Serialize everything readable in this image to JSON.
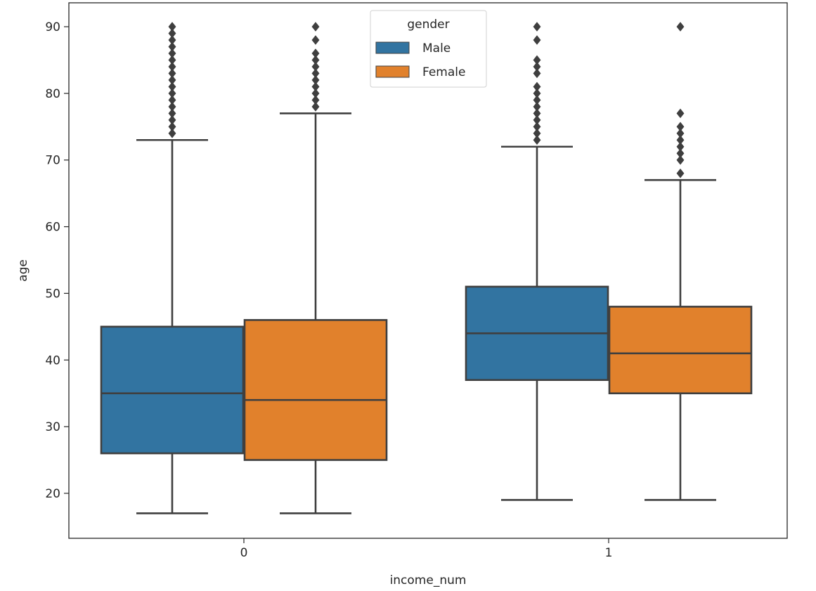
{
  "chart_data": {
    "type": "box",
    "title": "",
    "xlabel": "income_num",
    "ylabel": "age",
    "categories": [
      "0",
      "1"
    ],
    "ylim": [
      13,
      93
    ],
    "yticks": [
      20,
      30,
      40,
      50,
      60,
      70,
      80,
      90
    ],
    "grid": false,
    "legend": {
      "title": "gender",
      "placement": "top-center",
      "entries": [
        "Male",
        "Female"
      ]
    },
    "series": [
      {
        "name": "Male",
        "color": "#3274a1",
        "boxes": [
          {
            "category": "0",
            "whisker_low": 17,
            "q1": 26,
            "median": 35,
            "q3": 45,
            "whisker_high": 73,
            "outliers": [
              74,
              75,
              76,
              77,
              78,
              79,
              80,
              81,
              82,
              83,
              84,
              85,
              86,
              87,
              88,
              89,
              90
            ]
          },
          {
            "category": "1",
            "whisker_low": 19,
            "q1": 37,
            "median": 44,
            "q3": 51,
            "whisker_high": 72,
            "outliers": [
              73,
              74,
              75,
              76,
              77,
              78,
              79,
              80,
              81,
              83,
              84,
              85,
              88,
              90
            ]
          }
        ]
      },
      {
        "name": "Female",
        "color": "#e1812c",
        "boxes": [
          {
            "category": "0",
            "whisker_low": 17,
            "q1": 25,
            "median": 34,
            "q3": 46,
            "whisker_high": 77,
            "outliers": [
              78,
              79,
              80,
              81,
              82,
              83,
              84,
              85,
              86,
              88,
              90
            ]
          },
          {
            "category": "1",
            "whisker_low": 19,
            "q1": 35,
            "median": 41,
            "q3": 48,
            "whisker_high": 67,
            "outliers": [
              68,
              70,
              71,
              72,
              73,
              74,
              75,
              77,
              90
            ]
          }
        ]
      }
    ],
    "edge_color": "#3f3f3f"
  }
}
